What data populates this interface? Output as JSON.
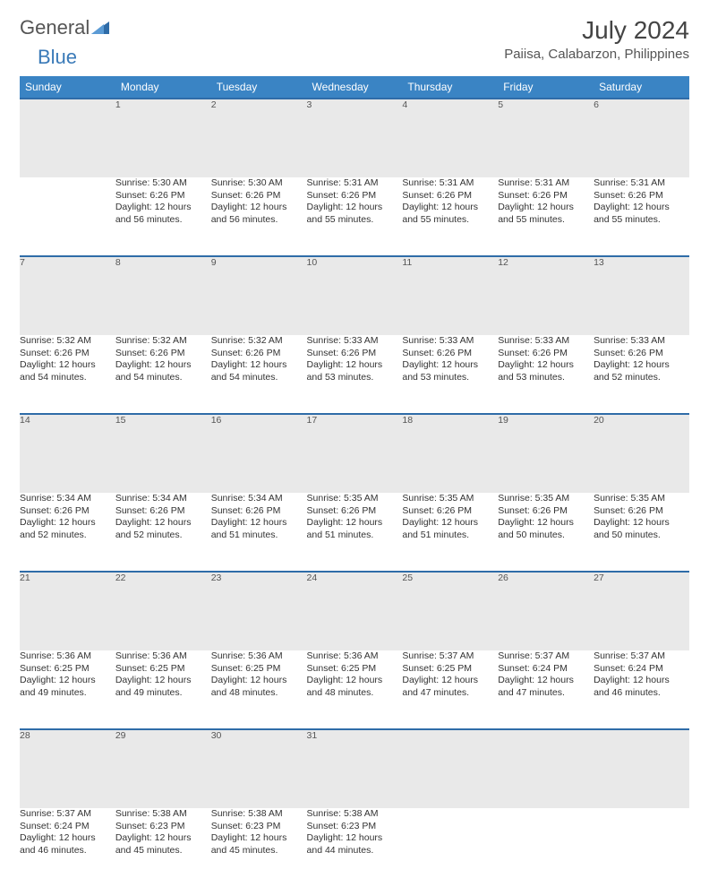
{
  "logo": {
    "text1": "General",
    "text2": "Blue"
  },
  "title": "July 2024",
  "location": "Paiisa, Calabarzon, Philippines",
  "colors": {
    "header_bg": "#3a84c4",
    "header_text": "#ffffff",
    "daynum_bg": "#e9e9e9",
    "daynum_border": "#2f6ca8",
    "body_text": "#333333",
    "logo_gray": "#555555",
    "logo_blue": "#3a7ab8"
  },
  "weekdays": [
    "Sunday",
    "Monday",
    "Tuesday",
    "Wednesday",
    "Thursday",
    "Friday",
    "Saturday"
  ],
  "weeks": [
    {
      "nums": [
        "",
        "1",
        "2",
        "3",
        "4",
        "5",
        "6"
      ],
      "cells": [
        null,
        {
          "sr": "Sunrise: 5:30 AM",
          "ss": "Sunset: 6:26 PM",
          "d1": "Daylight: 12 hours",
          "d2": "and 56 minutes."
        },
        {
          "sr": "Sunrise: 5:30 AM",
          "ss": "Sunset: 6:26 PM",
          "d1": "Daylight: 12 hours",
          "d2": "and 56 minutes."
        },
        {
          "sr": "Sunrise: 5:31 AM",
          "ss": "Sunset: 6:26 PM",
          "d1": "Daylight: 12 hours",
          "d2": "and 55 minutes."
        },
        {
          "sr": "Sunrise: 5:31 AM",
          "ss": "Sunset: 6:26 PM",
          "d1": "Daylight: 12 hours",
          "d2": "and 55 minutes."
        },
        {
          "sr": "Sunrise: 5:31 AM",
          "ss": "Sunset: 6:26 PM",
          "d1": "Daylight: 12 hours",
          "d2": "and 55 minutes."
        },
        {
          "sr": "Sunrise: 5:31 AM",
          "ss": "Sunset: 6:26 PM",
          "d1": "Daylight: 12 hours",
          "d2": "and 55 minutes."
        }
      ]
    },
    {
      "nums": [
        "7",
        "8",
        "9",
        "10",
        "11",
        "12",
        "13"
      ],
      "cells": [
        {
          "sr": "Sunrise: 5:32 AM",
          "ss": "Sunset: 6:26 PM",
          "d1": "Daylight: 12 hours",
          "d2": "and 54 minutes."
        },
        {
          "sr": "Sunrise: 5:32 AM",
          "ss": "Sunset: 6:26 PM",
          "d1": "Daylight: 12 hours",
          "d2": "and 54 minutes."
        },
        {
          "sr": "Sunrise: 5:32 AM",
          "ss": "Sunset: 6:26 PM",
          "d1": "Daylight: 12 hours",
          "d2": "and 54 minutes."
        },
        {
          "sr": "Sunrise: 5:33 AM",
          "ss": "Sunset: 6:26 PM",
          "d1": "Daylight: 12 hours",
          "d2": "and 53 minutes."
        },
        {
          "sr": "Sunrise: 5:33 AM",
          "ss": "Sunset: 6:26 PM",
          "d1": "Daylight: 12 hours",
          "d2": "and 53 minutes."
        },
        {
          "sr": "Sunrise: 5:33 AM",
          "ss": "Sunset: 6:26 PM",
          "d1": "Daylight: 12 hours",
          "d2": "and 53 minutes."
        },
        {
          "sr": "Sunrise: 5:33 AM",
          "ss": "Sunset: 6:26 PM",
          "d1": "Daylight: 12 hours",
          "d2": "and 52 minutes."
        }
      ]
    },
    {
      "nums": [
        "14",
        "15",
        "16",
        "17",
        "18",
        "19",
        "20"
      ],
      "cells": [
        {
          "sr": "Sunrise: 5:34 AM",
          "ss": "Sunset: 6:26 PM",
          "d1": "Daylight: 12 hours",
          "d2": "and 52 minutes."
        },
        {
          "sr": "Sunrise: 5:34 AM",
          "ss": "Sunset: 6:26 PM",
          "d1": "Daylight: 12 hours",
          "d2": "and 52 minutes."
        },
        {
          "sr": "Sunrise: 5:34 AM",
          "ss": "Sunset: 6:26 PM",
          "d1": "Daylight: 12 hours",
          "d2": "and 51 minutes."
        },
        {
          "sr": "Sunrise: 5:35 AM",
          "ss": "Sunset: 6:26 PM",
          "d1": "Daylight: 12 hours",
          "d2": "and 51 minutes."
        },
        {
          "sr": "Sunrise: 5:35 AM",
          "ss": "Sunset: 6:26 PM",
          "d1": "Daylight: 12 hours",
          "d2": "and 51 minutes."
        },
        {
          "sr": "Sunrise: 5:35 AM",
          "ss": "Sunset: 6:26 PM",
          "d1": "Daylight: 12 hours",
          "d2": "and 50 minutes."
        },
        {
          "sr": "Sunrise: 5:35 AM",
          "ss": "Sunset: 6:26 PM",
          "d1": "Daylight: 12 hours",
          "d2": "and 50 minutes."
        }
      ]
    },
    {
      "nums": [
        "21",
        "22",
        "23",
        "24",
        "25",
        "26",
        "27"
      ],
      "cells": [
        {
          "sr": "Sunrise: 5:36 AM",
          "ss": "Sunset: 6:25 PM",
          "d1": "Daylight: 12 hours",
          "d2": "and 49 minutes."
        },
        {
          "sr": "Sunrise: 5:36 AM",
          "ss": "Sunset: 6:25 PM",
          "d1": "Daylight: 12 hours",
          "d2": "and 49 minutes."
        },
        {
          "sr": "Sunrise: 5:36 AM",
          "ss": "Sunset: 6:25 PM",
          "d1": "Daylight: 12 hours",
          "d2": "and 48 minutes."
        },
        {
          "sr": "Sunrise: 5:36 AM",
          "ss": "Sunset: 6:25 PM",
          "d1": "Daylight: 12 hours",
          "d2": "and 48 minutes."
        },
        {
          "sr": "Sunrise: 5:37 AM",
          "ss": "Sunset: 6:25 PM",
          "d1": "Daylight: 12 hours",
          "d2": "and 47 minutes."
        },
        {
          "sr": "Sunrise: 5:37 AM",
          "ss": "Sunset: 6:24 PM",
          "d1": "Daylight: 12 hours",
          "d2": "and 47 minutes."
        },
        {
          "sr": "Sunrise: 5:37 AM",
          "ss": "Sunset: 6:24 PM",
          "d1": "Daylight: 12 hours",
          "d2": "and 46 minutes."
        }
      ]
    },
    {
      "nums": [
        "28",
        "29",
        "30",
        "31",
        "",
        "",
        ""
      ],
      "cells": [
        {
          "sr": "Sunrise: 5:37 AM",
          "ss": "Sunset: 6:24 PM",
          "d1": "Daylight: 12 hours",
          "d2": "and 46 minutes."
        },
        {
          "sr": "Sunrise: 5:38 AM",
          "ss": "Sunset: 6:23 PM",
          "d1": "Daylight: 12 hours",
          "d2": "and 45 minutes."
        },
        {
          "sr": "Sunrise: 5:38 AM",
          "ss": "Sunset: 6:23 PM",
          "d1": "Daylight: 12 hours",
          "d2": "and 45 minutes."
        },
        {
          "sr": "Sunrise: 5:38 AM",
          "ss": "Sunset: 6:23 PM",
          "d1": "Daylight: 12 hours",
          "d2": "and 44 minutes."
        },
        null,
        null,
        null
      ]
    }
  ]
}
